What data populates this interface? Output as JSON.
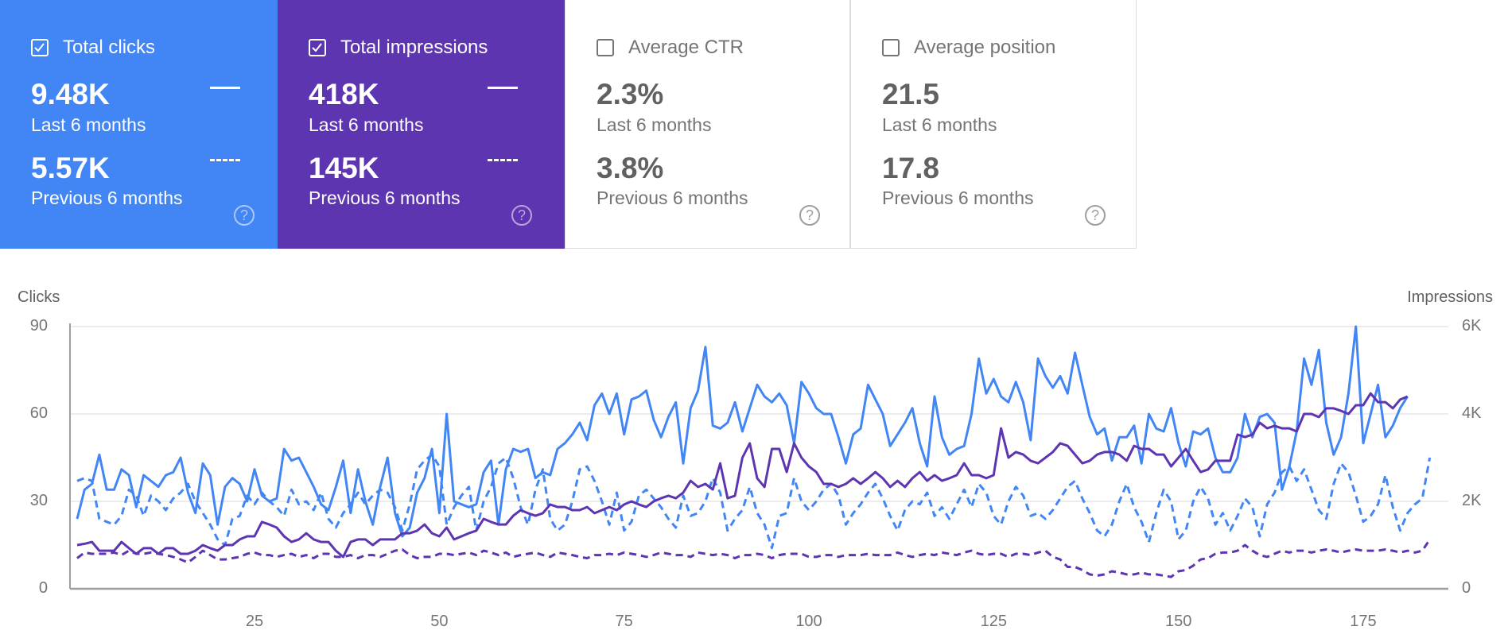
{
  "cards": [
    {
      "title": "Total clicks",
      "checked": true,
      "value": "9.48K",
      "period": "Last 6 months",
      "prev_value": "5.57K",
      "prev_period": "Previous 6 months",
      "color": "#4285f4"
    },
    {
      "title": "Total impressions",
      "checked": true,
      "value": "418K",
      "period": "Last 6 months",
      "prev_value": "145K",
      "prev_period": "Previous 6 months",
      "color": "#5e35b1"
    },
    {
      "title": "Average CTR",
      "checked": false,
      "value": "2.3%",
      "period": "Last 6 months",
      "prev_value": "3.8%",
      "prev_period": "Previous 6 months"
    },
    {
      "title": "Average position",
      "checked": false,
      "value": "21.5",
      "period": "Last 6 months",
      "prev_value": "17.8",
      "prev_period": "Previous 6 months"
    }
  ],
  "help_glyph": "?",
  "chart_data": {
    "type": "line",
    "ylabel_left": "Clicks",
    "ylabel_right": "Impressions",
    "ylim_left": [
      0,
      90
    ],
    "ylim_right": [
      0,
      6000
    ],
    "xlim": [
      1,
      184
    ],
    "left_ticks": [
      "90",
      "60",
      "30",
      "0"
    ],
    "right_ticks": [
      "6K",
      "4K",
      "2K",
      "0"
    ],
    "x_ticks": [
      "25",
      "50",
      "75",
      "100",
      "125",
      "150",
      "175"
    ],
    "grid": true,
    "series": [
      {
        "axis": "left",
        "style": "solid",
        "color": "#4285f4",
        "values": [
          24,
          34,
          36,
          46,
          34,
          34,
          41,
          39,
          28,
          39,
          37,
          35,
          39,
          40,
          45,
          33,
          26,
          43,
          39,
          22,
          35,
          38,
          36,
          30,
          41,
          32,
          30,
          31,
          48,
          44,
          45,
          40,
          35,
          29,
          27,
          35,
          44,
          26,
          41,
          30,
          22,
          35,
          45,
          26,
          18,
          21,
          33,
          38,
          48,
          26,
          60,
          30,
          29,
          28,
          29,
          40,
          44,
          22,
          41,
          48,
          47,
          48,
          38,
          40,
          39,
          48,
          50,
          53,
          57,
          51,
          63,
          67,
          60,
          67,
          53,
          65,
          66,
          68,
          58,
          52,
          59,
          64,
          43,
          62,
          68,
          83,
          56,
          55,
          57,
          64,
          54,
          62,
          70,
          66,
          64,
          67,
          63,
          50,
          71,
          67,
          62,
          60,
          60,
          52,
          43,
          53,
          55,
          70,
          65,
          60,
          49,
          53,
          57,
          62,
          50,
          42,
          66,
          52,
          46,
          48,
          49,
          60,
          79,
          67,
          72,
          66,
          64,
          71,
          64,
          51,
          79,
          73,
          69,
          73,
          67,
          81,
          70,
          59,
          53,
          55,
          44,
          52,
          52,
          56,
          43,
          60,
          55,
          54,
          62,
          50,
          42,
          54,
          53,
          55,
          45,
          40,
          40,
          45,
          60,
          52,
          59,
          60,
          57,
          34,
          42,
          54,
          79,
          70,
          82,
          57,
          46,
          52,
          67,
          90,
          50,
          60,
          70,
          52,
          56,
          62,
          66
        ]
      },
      {
        "axis": "left",
        "style": "dashed",
        "color": "#4285f4",
        "values": [
          37,
          38,
          37,
          24,
          23,
          22,
          25,
          34,
          32,
          25,
          32,
          30,
          27,
          31,
          33,
          36,
          30,
          26,
          22,
          17,
          15,
          24,
          25,
          32,
          29,
          33,
          30,
          28,
          25,
          34,
          29,
          30,
          27,
          33,
          24,
          21,
          26,
          29,
          33,
          29,
          32,
          34,
          33,
          28,
          20,
          29,
          41,
          44,
          46,
          42,
          22,
          28,
          32,
          35,
          20,
          30,
          35,
          43,
          45,
          38,
          28,
          22,
          34,
          41,
          24,
          20,
          22,
          30,
          41,
          42,
          37,
          30,
          22,
          33,
          20,
          23,
          32,
          34,
          31,
          28,
          24,
          21,
          32,
          25,
          26,
          30,
          38,
          33,
          20,
          24,
          27,
          35,
          26,
          22,
          14,
          25,
          26,
          38,
          30,
          27,
          30,
          34,
          36,
          32,
          22,
          26,
          29,
          33,
          36,
          31,
          25,
          20,
          27,
          30,
          29,
          33,
          25,
          28,
          24,
          29,
          34,
          28,
          36,
          33,
          25,
          22,
          30,
          35,
          32,
          25,
          26,
          24,
          27,
          31,
          35,
          37,
          31,
          26,
          20,
          18,
          22,
          30,
          36,
          28,
          23,
          16,
          26,
          34,
          30,
          17,
          20,
          30,
          35,
          31,
          22,
          26,
          20,
          25,
          31,
          28,
          18,
          29,
          33,
          40,
          42,
          37,
          41,
          34,
          27,
          24,
          36,
          43,
          40,
          32,
          23,
          25,
          29,
          39,
          28,
          20,
          26,
          29,
          31,
          45
        ]
      },
      {
        "axis": "right",
        "style": "solid",
        "color": "#5e35b1",
        "values": [
          1000,
          1030,
          1070,
          870,
          870,
          870,
          1070,
          930,
          800,
          930,
          930,
          800,
          930,
          930,
          800,
          800,
          870,
          1000,
          930,
          870,
          1000,
          1000,
          1130,
          1200,
          1200,
          1530,
          1470,
          1400,
          1200,
          1070,
          1130,
          1270,
          1130,
          1070,
          1070,
          870,
          730,
          1070,
          1130,
          1130,
          1000,
          1130,
          1130,
          1130,
          1270,
          1270,
          1330,
          1470,
          1270,
          1200,
          1400,
          1130,
          1200,
          1270,
          1330,
          1600,
          1530,
          1470,
          1470,
          1670,
          1800,
          1730,
          1670,
          1730,
          1930,
          1870,
          1870,
          1800,
          1800,
          1870,
          1730,
          1800,
          1870,
          1800,
          1930,
          2000,
          1930,
          1870,
          2000,
          2070,
          2130,
          2070,
          2200,
          2470,
          2330,
          2400,
          2270,
          2870,
          2070,
          2130,
          3000,
          3330,
          2530,
          2330,
          3200,
          3200,
          2670,
          3330,
          3000,
          2800,
          2670,
          2400,
          2400,
          2330,
          2400,
          2530,
          2400,
          2530,
          2670,
          2530,
          2330,
          2470,
          2330,
          2530,
          2670,
          2470,
          2600,
          2470,
          2530,
          2600,
          2870,
          2600,
          2600,
          2530,
          2600,
          3670,
          3000,
          3130,
          3070,
          2930,
          2870,
          3000,
          3130,
          3330,
          3270,
          3070,
          2870,
          2930,
          3070,
          3130,
          3130,
          3070,
          2930,
          3270,
          3200,
          3200,
          3070,
          3070,
          2800,
          3000,
          3200,
          2930,
          2670,
          2730,
          2930,
          2930,
          2930,
          3530,
          3470,
          3530,
          3800,
          3670,
          3730,
          3670,
          3670,
          3600,
          4000,
          4000,
          3930,
          4130,
          4130,
          4070,
          4000,
          4200,
          4200,
          4470,
          4270,
          4270,
          4130,
          4330,
          4400
        ]
      },
      {
        "axis": "right",
        "style": "dashed",
        "color": "#5e35b1",
        "values": [
          700,
          830,
          800,
          800,
          800,
          830,
          770,
          870,
          800,
          800,
          830,
          800,
          770,
          730,
          670,
          600,
          730,
          870,
          770,
          670,
          670,
          700,
          730,
          800,
          830,
          770,
          770,
          730,
          770,
          800,
          730,
          770,
          700,
          800,
          800,
          730,
          730,
          770,
          700,
          770,
          770,
          730,
          800,
          870,
          900,
          770,
          700,
          730,
          730,
          800,
          800,
          770,
          800,
          830,
          770,
          870,
          830,
          770,
          830,
          730,
          770,
          800,
          830,
          770,
          730,
          830,
          800,
          770,
          730,
          700,
          770,
          770,
          800,
          770,
          830,
          800,
          770,
          730,
          770,
          830,
          800,
          770,
          770,
          730,
          830,
          800,
          770,
          800,
          770,
          700,
          770,
          770,
          800,
          770,
          700,
          770,
          800,
          800,
          800,
          730,
          730,
          770,
          770,
          730,
          770,
          770,
          770,
          800,
          770,
          770,
          770,
          830,
          770,
          730,
          770,
          800,
          770,
          830,
          800,
          770,
          830,
          870,
          800,
          770,
          800,
          800,
          730,
          800,
          800,
          770,
          830,
          870,
          730,
          670,
          500,
          500,
          430,
          330,
          300,
          330,
          400,
          370,
          330,
          330,
          370,
          330,
          330,
          300,
          270,
          400,
          430,
          530,
          670,
          700,
          800,
          830,
          830,
          870,
          1000,
          870,
          770,
          730,
          800,
          870,
          830,
          870,
          870,
          830,
          870,
          900,
          870,
          830,
          870,
          900,
          870,
          870,
          870,
          900,
          870,
          830,
          870,
          830,
          870,
          1130
        ]
      }
    ]
  }
}
